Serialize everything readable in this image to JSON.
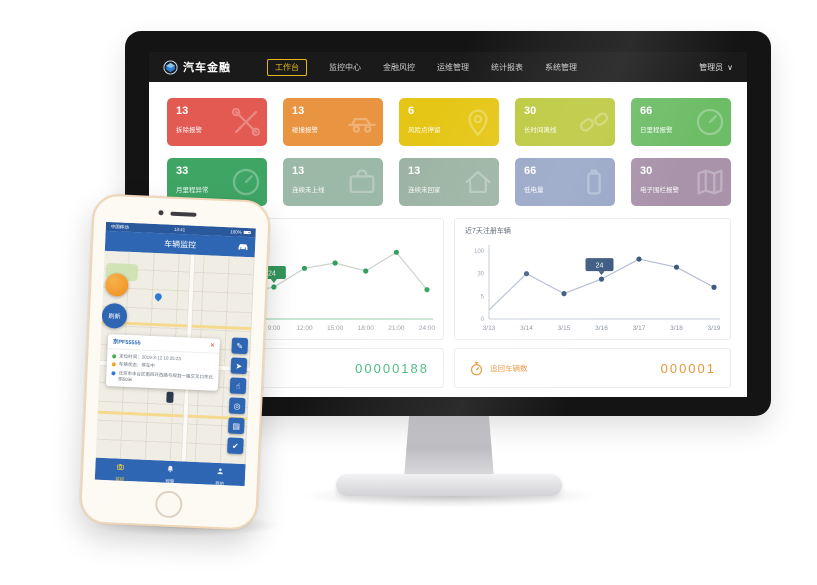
{
  "monitor": {
    "nav": {
      "brand": "汽车金融",
      "items": [
        {
          "label": "工作台",
          "active": true
        },
        {
          "label": "监控中心",
          "active": false
        },
        {
          "label": "金融风控",
          "active": false
        },
        {
          "label": "运维管理",
          "active": false
        },
        {
          "label": "统计报表",
          "active": false
        },
        {
          "label": "系统管理",
          "active": false
        }
      ],
      "user": "管理员",
      "caret": "∨"
    },
    "tiles": [
      {
        "value": "13",
        "label": "拆除报警",
        "color": "#e25a52",
        "icon": "tools"
      },
      {
        "value": "13",
        "label": "碰撞报警",
        "color": "#e99440",
        "icon": "collision"
      },
      {
        "value": "6",
        "label": "风险点停留",
        "color": "#e5c616",
        "icon": "map-pin"
      },
      {
        "value": "30",
        "label": "长时间离线",
        "color": "#bcc93e",
        "icon": "chain"
      },
      {
        "value": "66",
        "label": "日里程报警",
        "color": "#6dbd67",
        "icon": "gauge"
      },
      {
        "value": "33",
        "label": "月里程异常",
        "color": "#3fa565",
        "icon": "gauge"
      },
      {
        "value": "13",
        "label": "连续未上线",
        "color": "#9cb8a6",
        "icon": "briefcase"
      },
      {
        "value": "13",
        "label": "连续未回家",
        "color": "#9db4a4",
        "icon": "house"
      },
      {
        "value": "66",
        "label": "低电量",
        "color": "#98a6c6",
        "icon": "battery"
      },
      {
        "value": "30",
        "label": "电子围栏报警",
        "color": "#a893ab",
        "icon": "map"
      }
    ],
    "counters": [
      {
        "value": "00000188",
        "color": "#45b97e"
      },
      {
        "label": "追回车辆数",
        "value": "000001",
        "color": "#e8953c",
        "icon": "stopwatch-icon"
      }
    ]
  },
  "chart_data": [
    {
      "type": "line",
      "title": "",
      "x": [
        "0:00",
        "3:00",
        "6:00",
        "9:00",
        "12:00",
        "15:00",
        "18:00",
        "21:00",
        "24:00"
      ],
      "values": [
        18,
        20,
        19,
        24,
        38,
        42,
        36,
        50,
        22
      ],
      "ylim": [
        0,
        60
      ],
      "line_color": "#c9d2c9",
      "dot_color": "#2f9e5f",
      "axis_color": "#8fd0a8",
      "tooltip": {
        "index": 3,
        "label": "24"
      },
      "tooltip_bg": "#35975c",
      "axes": false,
      "legend": "none",
      "grid": false
    },
    {
      "type": "line",
      "title": "近7天注册车辆",
      "x": [
        "3/13",
        "3/14",
        "3/15",
        "3/16",
        "3/17",
        "3/18",
        "3/19"
      ],
      "values": [
        2,
        30,
        8,
        24,
        75,
        50,
        15
      ],
      "yticks": [
        0,
        5,
        30,
        100
      ],
      "line_color": "#b3bdd1",
      "dot_color": "#3d5a80",
      "axis_color": "#c3cad4",
      "tooltip": {
        "index": 3,
        "label": "24"
      },
      "tooltip_bg": "#3d5a80",
      "axes": true,
      "first_dot": false,
      "legend": "none",
      "grid": false
    }
  ],
  "phone": {
    "status": {
      "carrier": "中国移动",
      "time": "13:41",
      "battery": "100%"
    },
    "header": {
      "title": "车辆监控",
      "icon": "car-icon"
    },
    "fab_refresh": "刷新",
    "card": {
      "title": "京PF55555",
      "close": "×",
      "rows": [
        {
          "color": "#46b04a",
          "text": "定位时间：2019-3-12 10:25:23"
        },
        {
          "color": "#f5a623",
          "text": "车辆状态：停车中"
        },
        {
          "color": "#2e7bd6",
          "text": "北京市丰台区南四环西路与规划一路交叉口东北侧50米"
        }
      ]
    },
    "tools": [
      {
        "name": "edit-icon",
        "glyph": "✎"
      },
      {
        "name": "send-icon",
        "glyph": "➤"
      },
      {
        "name": "touch-icon",
        "glyph": "☝"
      },
      {
        "name": "target-icon",
        "glyph": "◎"
      },
      {
        "name": "list-icon",
        "glyph": "▤"
      },
      {
        "name": "check-icon",
        "glyph": "✔"
      }
    ],
    "tabs": [
      {
        "label": "监控",
        "active": true,
        "icon": "camera-icon"
      },
      {
        "label": "预警",
        "active": false,
        "icon": "bell-icon"
      },
      {
        "label": "我的",
        "active": false,
        "icon": "person-icon"
      }
    ]
  }
}
